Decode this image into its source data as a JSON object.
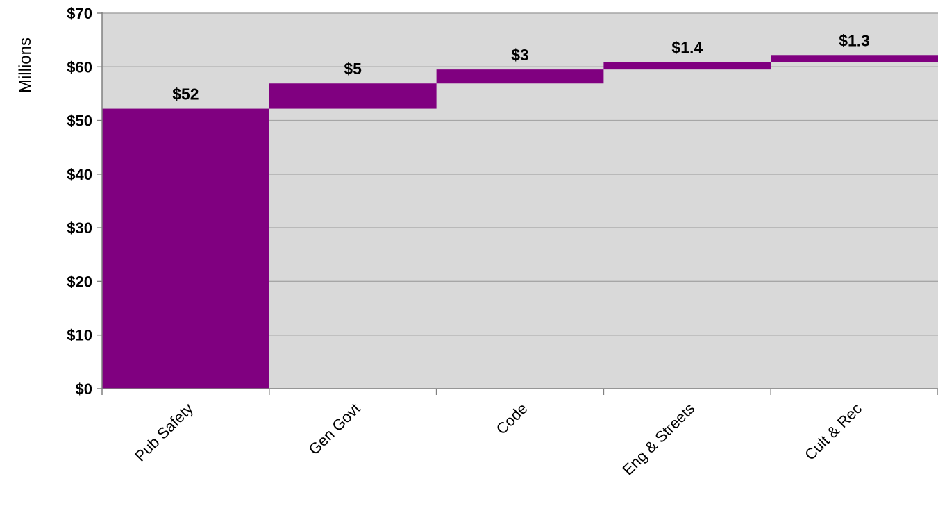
{
  "chart_data": {
    "type": "bar",
    "subtype": "waterfall",
    "title": "",
    "xlabel": "",
    "ylabel": "Millions",
    "ylim": [
      0,
      70
    ],
    "yticks": [
      0,
      10,
      20,
      30,
      40,
      50,
      60,
      70
    ],
    "ytick_labels": [
      "$0",
      "$10",
      "$20",
      "$30",
      "$40",
      "$50",
      "$60",
      "$70"
    ],
    "categories": [
      "Pub Safety",
      "Gen Govt",
      "Code",
      "Eng & Streets",
      "Cult & Rec"
    ],
    "values": [
      52.2,
      4.7,
      2.6,
      1.4,
      1.3
    ],
    "data_labels": [
      "$52",
      "$5",
      "$3",
      "$1.4",
      "$1.3"
    ],
    "grid": true,
    "legend": "none",
    "colors": {
      "bar": "#800080",
      "plot_background": "#d9d9d9",
      "gridline": "#a6a6a6",
      "axis": "#808080"
    }
  }
}
